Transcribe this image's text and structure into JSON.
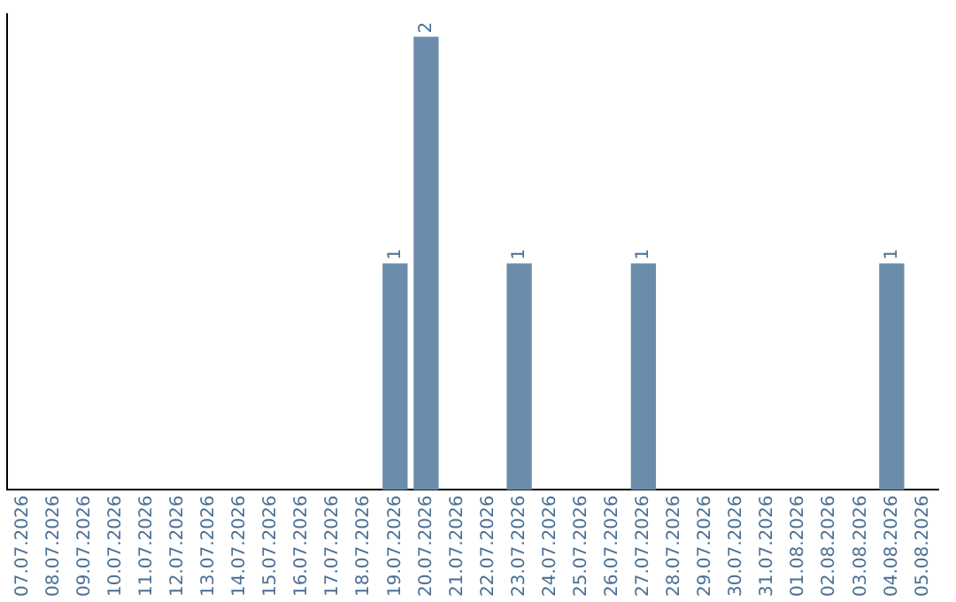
{
  "chart_data": {
    "type": "bar",
    "categories": [
      "07.07.2026",
      "08.07.2026",
      "09.07.2026",
      "10.07.2026",
      "11.07.2026",
      "12.07.2026",
      "13.07.2026",
      "14.07.2026",
      "15.07.2026",
      "16.07.2026",
      "17.07.2026",
      "18.07.2026",
      "19.07.2026",
      "20.07.2026",
      "21.07.2026",
      "22.07.2026",
      "23.07.2026",
      "24.07.2026",
      "25.07.2026",
      "26.07.2026",
      "27.07.2026",
      "28.07.2026",
      "29.07.2026",
      "30.07.2026",
      "31.07.2026",
      "01.08.2026",
      "02.08.2026",
      "03.08.2026",
      "04.08.2026",
      "05.08.2026"
    ],
    "values": [
      null,
      null,
      null,
      null,
      null,
      null,
      null,
      null,
      null,
      null,
      null,
      null,
      1,
      2,
      null,
      null,
      1,
      null,
      null,
      null,
      1,
      null,
      null,
      null,
      null,
      null,
      null,
      null,
      1,
      null
    ],
    "value_labels": [
      null,
      null,
      null,
      null,
      null,
      null,
      null,
      null,
      null,
      null,
      null,
      null,
      "1",
      "2",
      null,
      null,
      "1",
      null,
      null,
      null,
      "1",
      null,
      null,
      null,
      null,
      null,
      null,
      null,
      "1",
      null
    ],
    "color": "#6b8cab",
    "grid": false,
    "legend": false,
    "tick_labels": "x"
  }
}
